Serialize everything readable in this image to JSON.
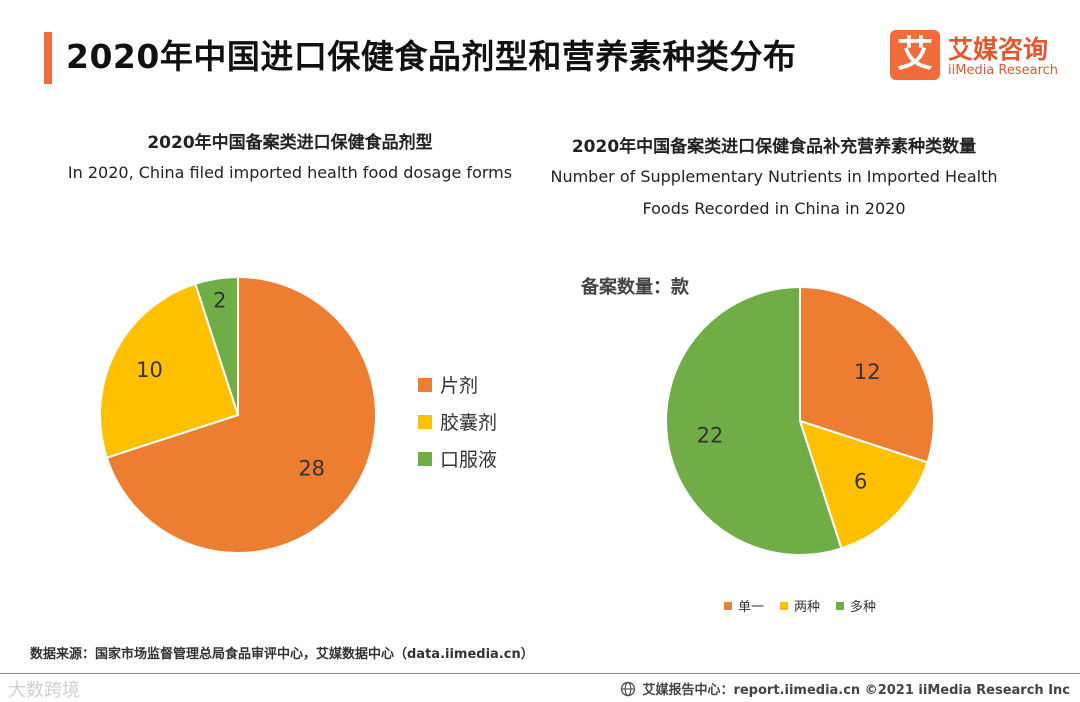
{
  "header": {
    "title": "2020年中国进口保健食品剂型和营养素种类分布",
    "logo_mark": "艾",
    "logo_cn": "艾媒咨询",
    "logo_en": "iiMedia Research"
  },
  "colors": {
    "orange": "#ed7d31",
    "yellow": "#ffc000",
    "green": "#70ad47",
    "accent": "#f26b3a"
  },
  "chart_data": [
    {
      "type": "pie",
      "title": "2020年中国备案类进口保健食品剂型",
      "subtitle": "In 2020, China filed imported health food dosage forms",
      "categories": [
        "片剂",
        "胶囊剂",
        "口服液"
      ],
      "values": [
        28,
        10,
        2
      ],
      "legend_position": "right"
    },
    {
      "type": "pie",
      "title": "2020年中国备案类进口保健食品补充营养素种类数量",
      "subtitle_line1": "Number of Supplementary Nutrients in Imported Health",
      "subtitle_line2": "Foods Recorded in China in 2020",
      "unit_label": "备案数量：款",
      "categories": [
        "单一",
        "两种",
        "多种"
      ],
      "values": [
        12,
        6,
        22
      ],
      "legend_position": "bottom"
    }
  ],
  "footer": {
    "source": "数据来源：国家市场监督管理总局食品审评中心，艾媒数据中心（data.iimedia.cn）",
    "right_text": "艾媒报告中心：report.iimedia.cn  ©2021  iiMedia Research  Inc",
    "watermark": "大数跨境"
  }
}
